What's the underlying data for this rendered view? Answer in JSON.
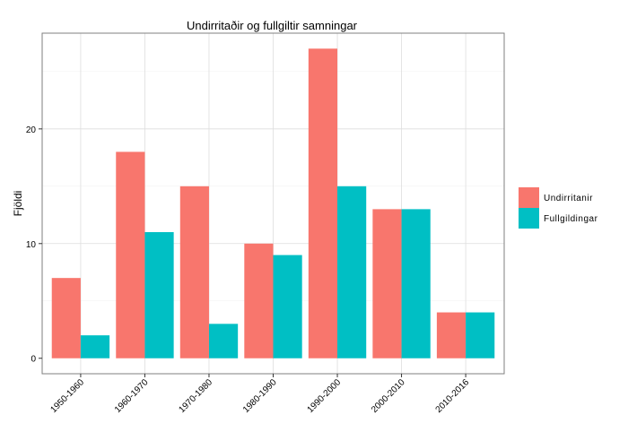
{
  "chart_data": {
    "type": "bar",
    "title": "Undirritaðir og fullgiltir samningar",
    "xlabel": "",
    "ylabel": "Fjöldi",
    "categories": [
      "1950-1960",
      "1960-1970",
      "1970-1980",
      "1980-1990",
      "1990-2000",
      "2000-2010",
      "2010-2016"
    ],
    "series": [
      {
        "name": "Undirritanir",
        "color": "#F8766D",
        "values": [
          7,
          18,
          15,
          10,
          27,
          13,
          4
        ]
      },
      {
        "name": "Fullgildingar",
        "color": "#00BFC4",
        "values": [
          2,
          11,
          3,
          9,
          15,
          13,
          4
        ]
      }
    ],
    "yticks": [
      0,
      10,
      20
    ],
    "ylim": [
      -1.35,
      28.35
    ],
    "grid": true,
    "legend": "right"
  }
}
